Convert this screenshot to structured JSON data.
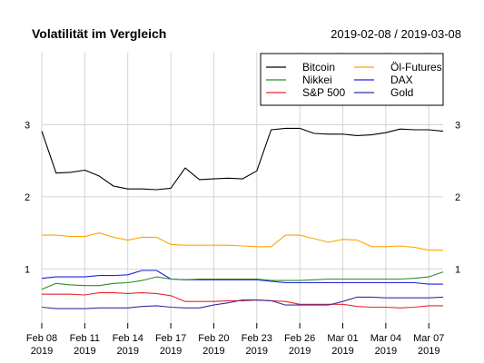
{
  "chart_data": {
    "type": "line",
    "title": "Volatilität im Vergleich",
    "subtitle": "2019-02-08 / 2019-03-08",
    "xlabel": "",
    "ylabel": "",
    "x": [
      "2019-02-08",
      "2019-02-09",
      "2019-02-10",
      "2019-02-11",
      "2019-02-12",
      "2019-02-13",
      "2019-02-14",
      "2019-02-15",
      "2019-02-16",
      "2019-02-17",
      "2019-02-18",
      "2019-02-19",
      "2019-02-20",
      "2019-02-21",
      "2019-02-22",
      "2019-02-23",
      "2019-02-24",
      "2019-02-25",
      "2019-02-26",
      "2019-02-27",
      "2019-02-28",
      "2019-03-01",
      "2019-03-02",
      "2019-03-03",
      "2019-03-04",
      "2019-03-05",
      "2019-03-06",
      "2019-03-07",
      "2019-03-08"
    ],
    "x_ticks": [
      {
        "date": "2019-02-08",
        "label": "Feb 08",
        "year": "2019"
      },
      {
        "date": "2019-02-11",
        "label": "Feb 11",
        "year": "2019"
      },
      {
        "date": "2019-02-14",
        "label": "Feb 14",
        "year": "2019"
      },
      {
        "date": "2019-02-17",
        "label": "Feb 17",
        "year": "2019"
      },
      {
        "date": "2019-02-20",
        "label": "Feb 20",
        "year": "2019"
      },
      {
        "date": "2019-02-23",
        "label": "Feb 23",
        "year": "2019"
      },
      {
        "date": "2019-02-26",
        "label": "Feb 26",
        "year": "2019"
      },
      {
        "date": "2019-03-01",
        "label": "Mar 01",
        "year": "2019"
      },
      {
        "date": "2019-03-04",
        "label": "Mar 04",
        "year": "2019"
      },
      {
        "date": "2019-03-07",
        "label": "Mar 07",
        "year": "2019"
      }
    ],
    "y_ticks": [
      "1",
      "2",
      "3"
    ],
    "ylim": [
      0.25,
      4.0
    ],
    "grid": true,
    "legend_position": "top-right",
    "legend_order": [
      0,
      3,
      1,
      4,
      2,
      5
    ],
    "series": [
      {
        "name": "Bitcoin",
        "color": "#000000",
        "values": [
          2.91,
          2.33,
          2.34,
          2.37,
          2.29,
          2.15,
          2.11,
          2.11,
          2.1,
          2.12,
          2.4,
          2.24,
          2.25,
          2.26,
          2.25,
          2.36,
          2.93,
          2.95,
          2.95,
          2.88,
          2.87,
          2.87,
          2.85,
          2.86,
          2.89,
          2.94,
          2.93,
          2.93,
          2.91
        ]
      },
      {
        "name": "S&P 500",
        "color": "#e8262b",
        "values": [
          0.65,
          0.65,
          0.65,
          0.64,
          0.67,
          0.67,
          0.66,
          0.67,
          0.66,
          0.63,
          0.55,
          0.55,
          0.55,
          0.56,
          0.56,
          0.57,
          0.56,
          0.55,
          0.51,
          0.51,
          0.51,
          0.51,
          0.48,
          0.47,
          0.47,
          0.46,
          0.47,
          0.49,
          0.49
        ]
      },
      {
        "name": "DAX",
        "color": "#2020e0",
        "values": [
          0.87,
          0.89,
          0.89,
          0.89,
          0.91,
          0.91,
          0.92,
          0.98,
          0.98,
          0.86,
          0.85,
          0.85,
          0.85,
          0.85,
          0.85,
          0.85,
          0.83,
          0.81,
          0.81,
          0.81,
          0.81,
          0.81,
          0.81,
          0.81,
          0.81,
          0.81,
          0.81,
          0.79,
          0.79
        ]
      },
      {
        "name": "Nikkei",
        "color": "#2e8b2e",
        "values": [
          0.72,
          0.8,
          0.78,
          0.77,
          0.77,
          0.8,
          0.81,
          0.84,
          0.89,
          0.86,
          0.85,
          0.86,
          0.86,
          0.86,
          0.86,
          0.86,
          0.84,
          0.84,
          0.84,
          0.85,
          0.86,
          0.86,
          0.86,
          0.86,
          0.86,
          0.86,
          0.87,
          0.89,
          0.96
        ]
      },
      {
        "name": "Öl-Futures",
        "color": "#ffa500",
        "values": [
          1.47,
          1.47,
          1.45,
          1.45,
          1.5,
          1.44,
          1.4,
          1.44,
          1.44,
          1.34,
          1.33,
          1.33,
          1.33,
          1.33,
          1.32,
          1.31,
          1.31,
          1.47,
          1.47,
          1.42,
          1.37,
          1.41,
          1.4,
          1.31,
          1.31,
          1.32,
          1.3,
          1.26,
          1.26
        ]
      },
      {
        "name": "Gold",
        "color": "#3a2ca0",
        "values": [
          0.47,
          0.45,
          0.45,
          0.45,
          0.46,
          0.46,
          0.46,
          0.48,
          0.49,
          0.47,
          0.46,
          0.46,
          0.5,
          0.53,
          0.57,
          0.57,
          0.56,
          0.5,
          0.5,
          0.5,
          0.5,
          0.55,
          0.61,
          0.61,
          0.6,
          0.6,
          0.6,
          0.6,
          0.61
        ]
      }
    ]
  }
}
